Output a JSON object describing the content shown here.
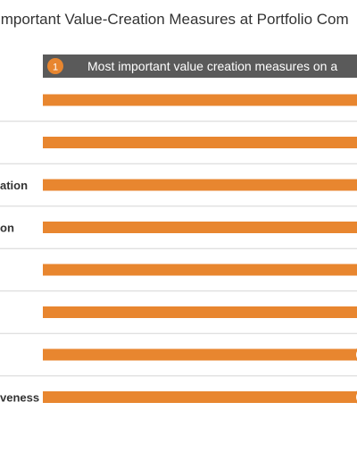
{
  "title": "Important Value-Creation Measures at Portfolio Com",
  "header": {
    "badge": "1",
    "label": "Most important value creation measures on a"
  },
  "chart_data": {
    "type": "bar",
    "orientation": "horizontal",
    "categories": [
      "",
      "",
      "ation",
      "on",
      "",
      "",
      "",
      "veness"
    ],
    "values": [
      1,
      1,
      1,
      1,
      1,
      1,
      1,
      1
    ],
    "partial_markers": [
      false,
      false,
      false,
      false,
      false,
      false,
      true,
      true
    ],
    "cropped": true,
    "bar_color": "#e8862f",
    "header_color": "#5a5a5a",
    "divider_color": "#d6d6d6",
    "text_color": "#333333"
  }
}
